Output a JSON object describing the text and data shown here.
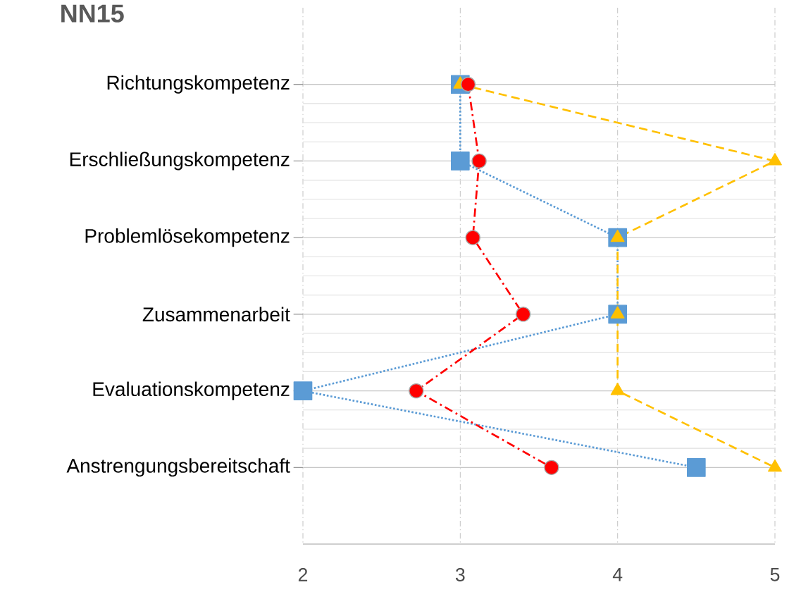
{
  "chart_data": {
    "type": "line",
    "title": "NN15",
    "categories": [
      "Richtungskompetenz",
      "Erschließungskompetenz",
      "Problemlösekompetenz",
      "Zusammenarbeit",
      "Evaluationskompetenz",
      "Anstrengungsbereitschaft"
    ],
    "orientation": "horizontal",
    "series": [
      {
        "color": "#5b9bd5",
        "marker": "square",
        "line_style": "dotted",
        "values": [
          3,
          3,
          4,
          4,
          2,
          4.5
        ]
      },
      {
        "color": "#ffc000",
        "marker": "triangle",
        "line_style": "dashed",
        "values": [
          3,
          5,
          4,
          4,
          4,
          5
        ]
      },
      {
        "color": "#ff0000",
        "marker": "circle",
        "line_style": "dashdot",
        "values": [
          3.05,
          3.12,
          3.08,
          3.4,
          2.72,
          3.58
        ]
      }
    ],
    "xlim": [
      2,
      5
    ],
    "xticks": [
      2,
      3,
      4,
      5
    ],
    "grid": true
  }
}
